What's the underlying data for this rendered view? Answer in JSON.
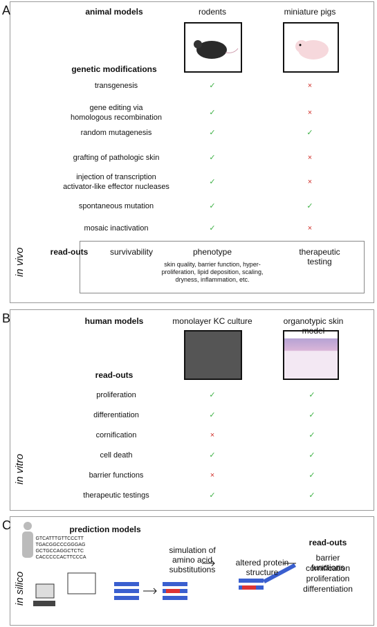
{
  "panels": [
    {
      "letter": "A",
      "side_label": "in vivo",
      "header": "animal models",
      "columns": [
        "rodents",
        "miniature pigs"
      ],
      "section": "genetic modifications",
      "rows": [
        {
          "label": "transgenesis",
          "values": [
            "✓",
            "×"
          ]
        },
        {
          "label": "gene editing via\nhomologous recombination",
          "values": [
            "✓",
            "×"
          ]
        },
        {
          "label": "random mutagenesis",
          "values": [
            "✓",
            "✓"
          ]
        },
        {
          "label": "grafting of pathologic skin",
          "values": [
            "✓",
            "×"
          ]
        },
        {
          "label": "injection of transcription\nactivator-like effector nucleases",
          "values": [
            "✓",
            "×"
          ]
        },
        {
          "label": "spontaneous mutation",
          "values": [
            "✓",
            "✓"
          ]
        },
        {
          "label": "mosaic inactivation",
          "values": [
            "✓",
            "×"
          ]
        }
      ],
      "readouts_title": "read-outs",
      "readouts": [
        "survivability",
        "phenotype",
        "therapeutic\ntesting"
      ],
      "phenotype_detail": "skin quality, barrier function, hyper-\nproliferation, lipid deposition, scaling,\ndryness, inflammation, etc."
    },
    {
      "letter": "B",
      "side_label": "in vitro",
      "header": "human models",
      "columns": [
        "monolayer KC culture",
        "organotypic skin model"
      ],
      "section": "read-outs",
      "rows": [
        {
          "label": "proliferation",
          "values": [
            "✓",
            "✓"
          ]
        },
        {
          "label": "differentiation",
          "values": [
            "✓",
            "✓"
          ]
        },
        {
          "label": "cornification",
          "values": [
            "×",
            "✓"
          ]
        },
        {
          "label": "cell death",
          "values": [
            "✓",
            "✓"
          ]
        },
        {
          "label": "barrier functions",
          "values": [
            "×",
            "✓"
          ]
        },
        {
          "label": "therapeutic testings",
          "values": [
            "✓",
            "✓"
          ]
        }
      ]
    },
    {
      "letter": "C",
      "side_label": "in silico",
      "header": "prediction models",
      "sequence": "GTCATTTGTTCCCTT\nTGACGGCCCGGGAG\nGCTGCCAGGCTCTC\nCACCCCCACTTCCCA",
      "step1": "simulation of\namino acid\nsubstitutions",
      "step2": "altered protein\nstructure",
      "readouts_title": "read-outs",
      "readouts": [
        "barrier functions",
        "cornification",
        "proliferation",
        "differentiation"
      ]
    }
  ]
}
